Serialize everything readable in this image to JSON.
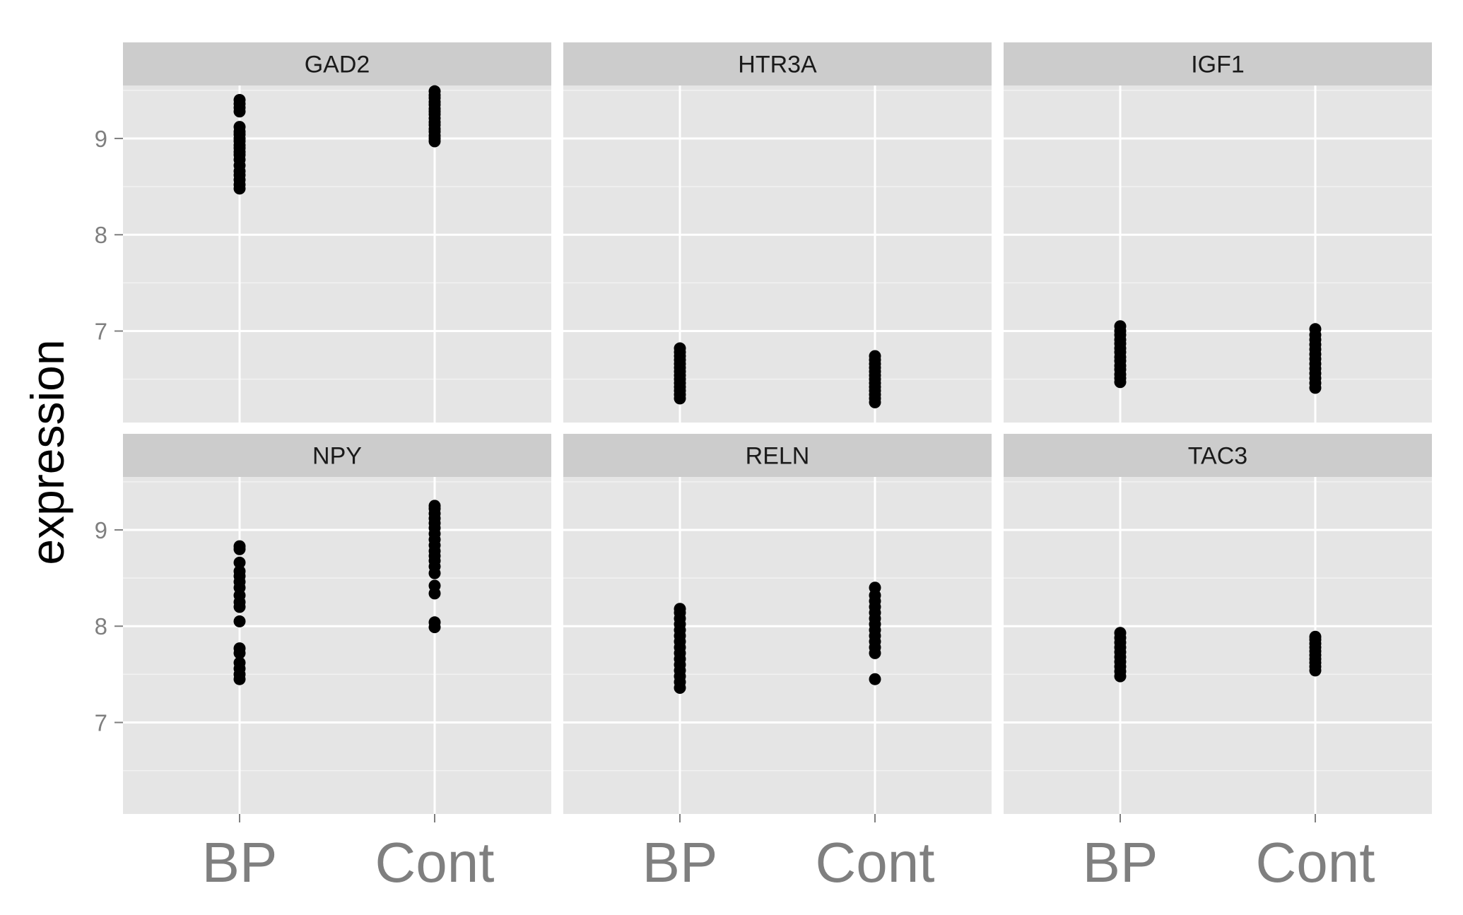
{
  "chart_data": {
    "type": "scatter",
    "ylabel": "expression",
    "xlabel": "",
    "categories": [
      "BP",
      "Cont"
    ],
    "ylim": [
      6.05,
      9.55
    ],
    "yticks": [
      7,
      8,
      9
    ],
    "grid": true,
    "colors": {
      "panel_bg": "#e5e5e5",
      "strip_bg": "#cccccc",
      "grid": "#ffffff",
      "point": "#000000"
    },
    "panels": [
      {
        "title": "GAD2",
        "series": [
          {
            "category": "BP",
            "values": [
              8.48,
              8.52,
              8.57,
              8.62,
              8.66,
              8.72,
              8.78,
              8.83,
              8.86,
              8.9,
              8.93,
              8.97,
              9.0,
              9.04,
              9.07,
              9.12,
              9.28,
              9.32,
              9.36,
              9.4
            ]
          },
          {
            "category": "Cont",
            "values": [
              8.97,
              9.0,
              9.03,
              9.07,
              9.1,
              9.14,
              9.17,
              9.21,
              9.25,
              9.28,
              9.31,
              9.35,
              9.38,
              9.42,
              9.45,
              9.49
            ]
          }
        ]
      },
      {
        "title": "HTR3A",
        "series": [
          {
            "category": "BP",
            "values": [
              6.3,
              6.34,
              6.38,
              6.42,
              6.46,
              6.5,
              6.54,
              6.58,
              6.62,
              6.66,
              6.7,
              6.74,
              6.78,
              6.82
            ]
          },
          {
            "category": "Cont",
            "values": [
              6.26,
              6.3,
              6.34,
              6.38,
              6.42,
              6.46,
              6.5,
              6.54,
              6.58,
              6.62,
              6.66,
              6.7,
              6.74
            ]
          }
        ]
      },
      {
        "title": "IGF1",
        "series": [
          {
            "category": "BP",
            "values": [
              6.47,
              6.51,
              6.55,
              6.6,
              6.64,
              6.69,
              6.73,
              6.78,
              6.82,
              6.87,
              6.91,
              6.96,
              7.0,
              7.05
            ]
          },
          {
            "category": "Cont",
            "values": [
              6.41,
              6.46,
              6.51,
              6.56,
              6.61,
              6.66,
              6.71,
              6.76,
              6.81,
              6.86,
              6.91,
              6.96,
              7.02
            ]
          }
        ]
      },
      {
        "title": "NPY",
        "series": [
          {
            "category": "BP",
            "values": [
              7.45,
              7.5,
              7.56,
              7.62,
              7.72,
              7.77,
              8.05,
              8.2,
              8.25,
              8.32,
              8.4,
              8.46,
              8.52,
              8.57,
              8.66,
              8.8,
              8.83
            ]
          },
          {
            "category": "Cont",
            "values": [
              7.99,
              8.04,
              8.34,
              8.42,
              8.55,
              8.62,
              8.68,
              8.73,
              8.78,
              8.84,
              8.9,
              8.96,
              9.02,
              9.07,
              9.12,
              9.17,
              9.22,
              9.25
            ]
          }
        ]
      },
      {
        "title": "RELN",
        "series": [
          {
            "category": "BP",
            "values": [
              7.36,
              7.42,
              7.48,
              7.54,
              7.6,
              7.66,
              7.72,
              7.78,
              7.84,
              7.9,
              7.96,
              8.02,
              8.08,
              8.14,
              8.18
            ]
          },
          {
            "category": "Cont",
            "values": [
              7.45,
              7.72,
              7.78,
              7.84,
              7.9,
              7.96,
              8.02,
              8.08,
              8.14,
              8.2,
              8.26,
              8.32,
              8.4
            ]
          }
        ]
      },
      {
        "title": "TAC3",
        "series": [
          {
            "category": "BP",
            "values": [
              7.48,
              7.53,
              7.58,
              7.63,
              7.68,
              7.73,
              7.78,
              7.83,
              7.88,
              7.93
            ]
          },
          {
            "category": "Cont",
            "values": [
              7.54,
              7.58,
              7.62,
              7.66,
              7.7,
              7.74,
              7.78,
              7.82,
              7.86,
              7.89
            ]
          }
        ]
      }
    ]
  }
}
